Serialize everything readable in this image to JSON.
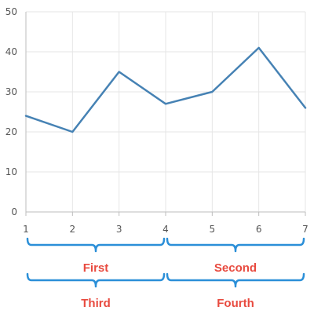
{
  "chart_data": {
    "type": "line",
    "x": [
      1,
      2,
      3,
      4,
      5,
      6,
      7
    ],
    "xlim": [
      1,
      7
    ],
    "ylim": [
      0,
      50
    ],
    "x_ticks": [
      "1",
      "2",
      "3",
      "4",
      "5",
      "6",
      "7"
    ],
    "y_ticks": [
      "0",
      "10",
      "20",
      "30",
      "40",
      "50"
    ],
    "grid": true,
    "series": [
      {
        "values": [
          24,
          20,
          35,
          27,
          30,
          41,
          26
        ],
        "color": "#4682b4"
      }
    ],
    "brace_groups": [
      {
        "label": "First",
        "from": 1,
        "to": 4,
        "row": 1
      },
      {
        "label": "Second",
        "from": 4,
        "to": 7,
        "row": 1
      },
      {
        "label": "Third",
        "from": 1,
        "to": 4,
        "row": 2
      },
      {
        "label": "Fourth",
        "from": 4,
        "to": 7,
        "row": 2
      }
    ],
    "brace_color": "#2b8fd8",
    "label_color": "#e84a3f"
  }
}
